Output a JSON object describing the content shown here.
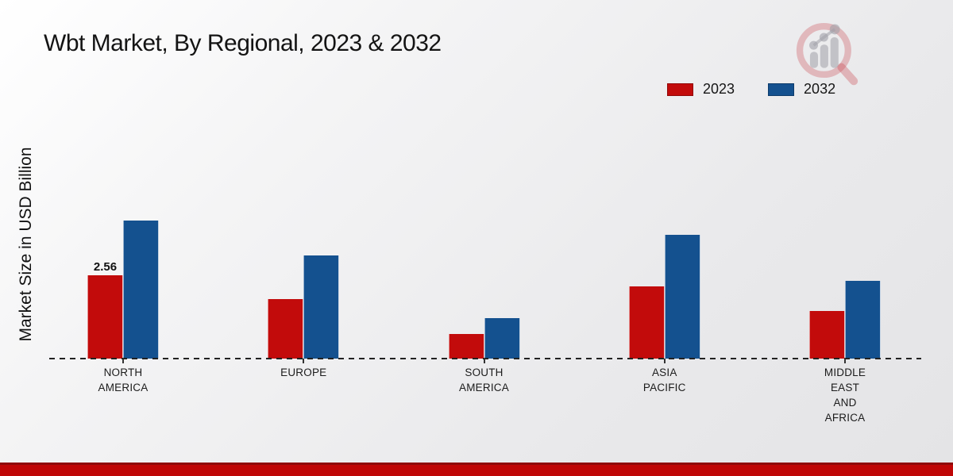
{
  "page": {
    "title": "Wbt Market, By Regional, 2023 & 2032"
  },
  "chart_data": {
    "type": "bar",
    "title": "Wbt Market, By Regional, 2023 & 2032",
    "ylabel": "Market Size in USD Billion",
    "xlabel": "",
    "categories": [
      "NORTH AMERICA",
      "EUROPE",
      "SOUTH AMERICA",
      "ASIA PACIFIC",
      "MIDDLE EAST AND AFRICA"
    ],
    "category_label_lines": [
      [
        "NORTH",
        "AMERICA"
      ],
      [
        "EUROPE"
      ],
      [
        "SOUTH",
        "AMERICA"
      ],
      [
        "ASIA",
        "PACIFIC"
      ],
      [
        "MIDDLE",
        "EAST",
        "AND",
        "AFRICA"
      ]
    ],
    "series": [
      {
        "name": "2023",
        "color": "#c20b0b",
        "values": [
          2.56,
          1.83,
          0.76,
          2.22,
          1.46
        ]
      },
      {
        "name": "2032",
        "color": "#14518f",
        "values": [
          4.24,
          3.17,
          1.24,
          3.8,
          2.39
        ]
      }
    ],
    "annotations": [
      {
        "series_index": 0,
        "category_index": 0,
        "text": "2.56"
      }
    ],
    "ylim": [
      0,
      5
    ],
    "grid": false,
    "legend_position": "top-right",
    "baseline_style": "dashed-black",
    "accent_colors": {
      "footer_bar": "#bf0606",
      "footer_line": "#8f0b0b"
    }
  }
}
